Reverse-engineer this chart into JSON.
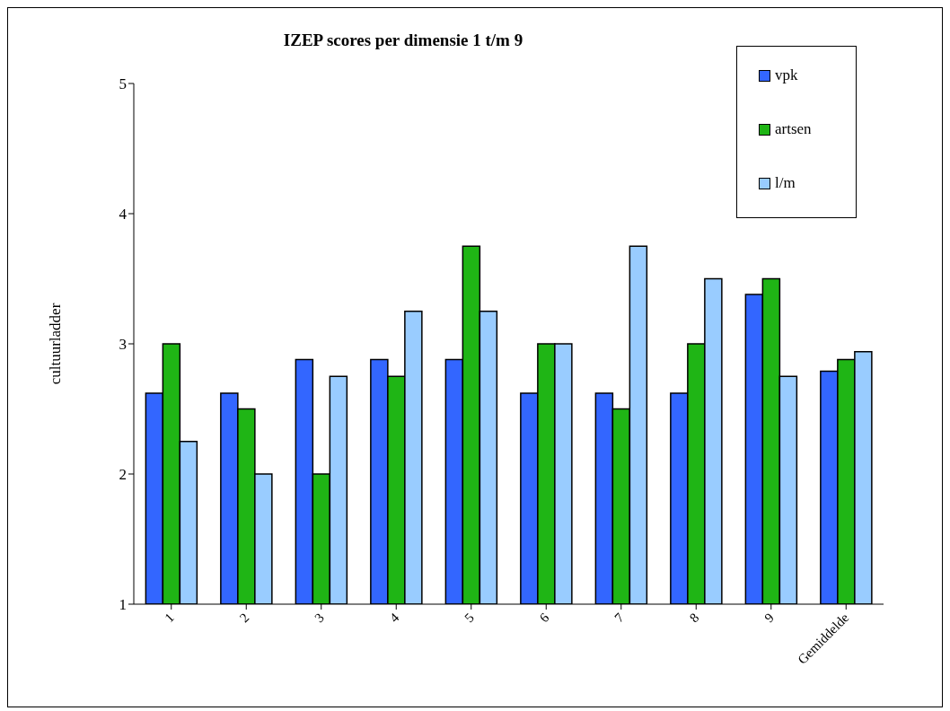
{
  "chart_data": {
    "type": "bar",
    "title": "IZEP scores per dimensie 1 t/m 9",
    "ylabel": "cultuurladder",
    "categories": [
      "1",
      "2",
      "3",
      "4",
      "5",
      "6",
      "7",
      "8",
      "9",
      "Gemiddelde"
    ],
    "series": [
      {
        "name": "vpk",
        "color": "#3366ff",
        "values": [
          2.62,
          2.62,
          2.88,
          2.88,
          2.88,
          2.62,
          2.62,
          2.62,
          3.38,
          2.79
        ]
      },
      {
        "name": "artsen",
        "color": "#1fb515",
        "values": [
          3.0,
          2.5,
          2.0,
          2.75,
          3.75,
          3.0,
          2.5,
          3.0,
          3.5,
          2.88
        ]
      },
      {
        "name": "l/m",
        "color": "#99ccff",
        "values": [
          2.25,
          2.0,
          2.75,
          3.25,
          3.25,
          3.0,
          3.75,
          3.5,
          2.75,
          2.94
        ]
      }
    ],
    "ylim": [
      1,
      5
    ],
    "yticks": [
      1,
      2,
      3,
      4,
      5
    ],
    "grid": false,
    "legend": "top right"
  }
}
